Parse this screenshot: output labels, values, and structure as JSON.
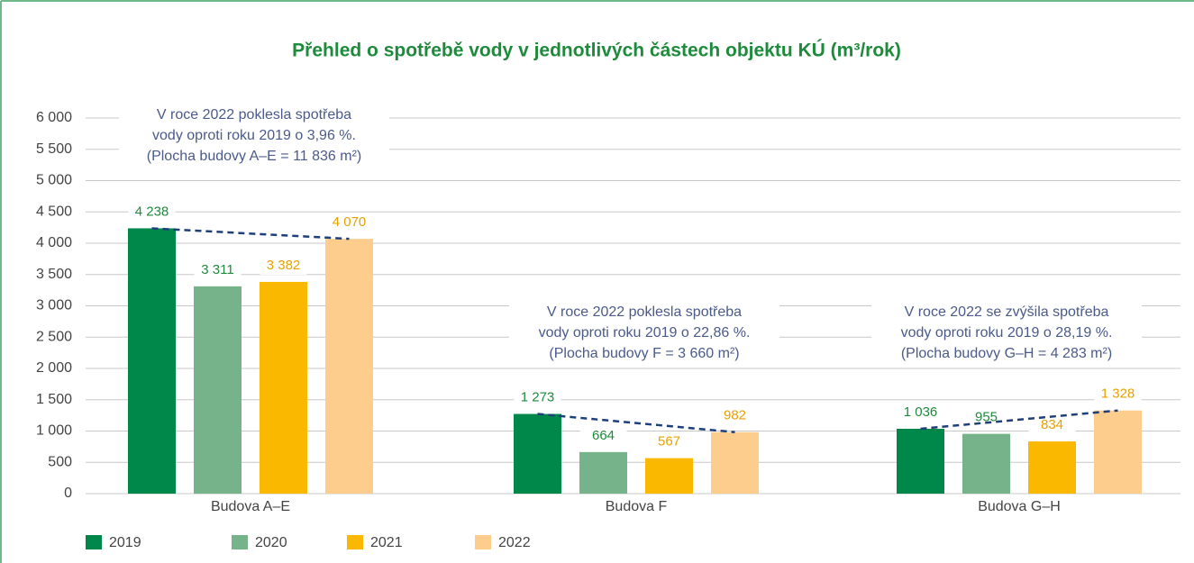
{
  "chart_data": {
    "type": "bar",
    "title": "Přehled o spotřebě vody v jednotlivých částech objektu KÚ (m³/rok)",
    "categories": [
      "Budova A–E",
      "Budova F",
      "Budova G–H"
    ],
    "series": [
      {
        "name": "2019",
        "color": "#00884a",
        "values": [
          4238,
          1273,
          1036
        ],
        "value_labels": [
          "4 238",
          "1 273",
          "1 036"
        ]
      },
      {
        "name": "2020",
        "color": "#76b38b",
        "values": [
          3311,
          664,
          955
        ],
        "value_labels": [
          "3 311",
          "664",
          "955"
        ]
      },
      {
        "name": "2021",
        "color": "#fbb800",
        "values": [
          3382,
          567,
          834
        ],
        "value_labels": [
          "3 382",
          "567",
          "834"
        ]
      },
      {
        "name": "2022",
        "color": "#fdcd8e",
        "values": [
          4070,
          982,
          1328
        ],
        "value_labels": [
          "4 070",
          "982",
          "1 328"
        ]
      }
    ],
    "ylim": [
      0,
      6000
    ],
    "yticks": [
      0,
      500,
      {
        "value": 1000,
        "label": "1 000"
      },
      {
        "value": 1500,
        "label": "1 500"
      },
      {
        "value": 2000,
        "label": "2 000"
      },
      {
        "value": 2500,
        "label": "2 500"
      },
      {
        "value": 3000,
        "label": "3 000"
      },
      {
        "value": 3500,
        "label": "3 500"
      },
      {
        "value": 4000,
        "label": "4 000"
      },
      {
        "value": 4500,
        "label": "4 500"
      },
      {
        "value": 5000,
        "label": "5 000"
      },
      {
        "value": 5500,
        "label": "5 500"
      },
      {
        "value": 6000,
        "label": "6 000"
      }
    ],
    "grid": true,
    "annotations": [
      {
        "lines": [
          "V roce 2022 poklesla spotřeba",
          "vody oproti roku 2019 o 3,96 %.",
          "(Plocha budovy A–E = 11 836 m²)"
        ]
      },
      {
        "lines": [
          "V roce 2022 poklesla spotřeba",
          "vody oproti roku 2019 o 22,86 %.",
          "(Plocha budovy F = 3 660 m²)"
        ]
      },
      {
        "lines": [
          "V roce 2022 se zvýšila spotřeba",
          "vody oproti roku 2019 o 28,19 %.",
          "(Plocha budovy G–H = 4 283 m²)"
        ]
      }
    ]
  }
}
